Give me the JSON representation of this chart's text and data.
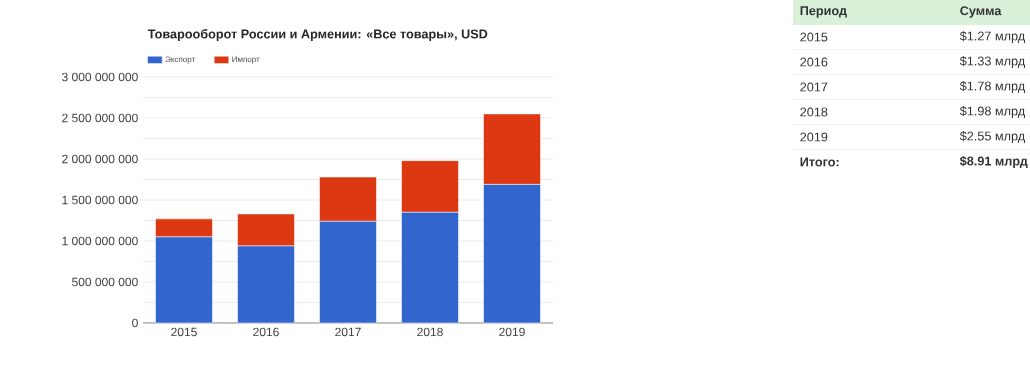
{
  "chart_data": {
    "type": "bar",
    "stacked": true,
    "title": "Товарооборот России и Армении: «Все товары», USD",
    "categories": [
      "2015",
      "2016",
      "2017",
      "2018",
      "2019"
    ],
    "series": [
      {
        "name": "Экспорт",
        "color": "#3366cc",
        "values": [
          1050000000,
          940000000,
          1240000000,
          1350000000,
          1690000000
        ]
      },
      {
        "name": "Импорт",
        "color": "#dc3912",
        "values": [
          220000000,
          390000000,
          540000000,
          630000000,
          860000000
        ]
      }
    ],
    "ylim": [
      0,
      3000000000
    ],
    "yticks": [
      {
        "value": 0,
        "label": "0"
      },
      {
        "value": 250000000,
        "label": null
      },
      {
        "value": 500000000,
        "label": "500 000 000"
      },
      {
        "value": 750000000,
        "label": null
      },
      {
        "value": 1000000000,
        "label": "1 000 000 000"
      },
      {
        "value": 1250000000,
        "label": null
      },
      {
        "value": 1500000000,
        "label": "1 500 000 000"
      },
      {
        "value": 1750000000,
        "label": null
      },
      {
        "value": 2000000000,
        "label": "2 000 000 000"
      },
      {
        "value": 2250000000,
        "label": null
      },
      {
        "value": 2500000000,
        "label": "2 500 000 000"
      },
      {
        "value": 2750000000,
        "label": null
      },
      {
        "value": 3000000000,
        "label": "3 000 000 000"
      }
    ],
    "grid": "y",
    "legend": "top left",
    "annotations": [
      "Период",
      "Сумма",
      "$1.27 млрд",
      "$1.33 млрд",
      "$1.78 млрд",
      "$1.98 млрд",
      "$2.55 млрд",
      "Итого:",
      "$8.91 млрд"
    ]
  }
}
